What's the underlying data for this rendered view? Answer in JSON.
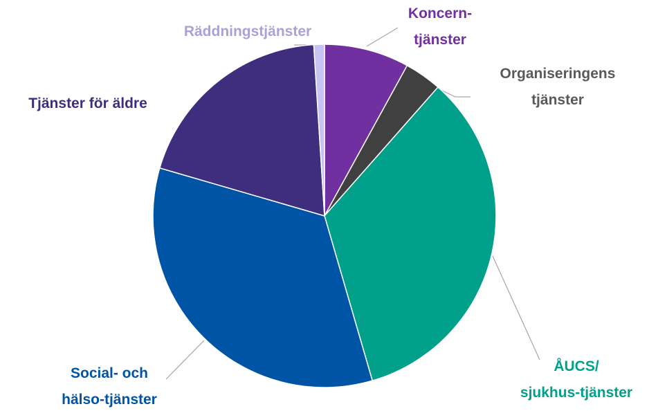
{
  "chart_data": {
    "type": "pie",
    "categories": [
      "Koncern-\ntjänster",
      "Organiseringens\ntjänster",
      "ÅUCS/\nsjukhus-tjänster",
      "Social- och\nhälso-tjänster",
      "Tjänster för äldre",
      "Räddningstjänster"
    ],
    "values": [
      8,
      3.5,
      34,
      34,
      19.5,
      1
    ],
    "colors": [
      "#7030a0",
      "#404040",
      "#00a08a",
      "#0054a6",
      "#3f2d7e",
      "#c9c3f3"
    ],
    "label_colors": [
      "#7030a0",
      "#595959",
      "#00a08a",
      "#0054a6",
      "#3f2d7e",
      "#a9a1d8"
    ],
    "start_angle": 0,
    "direction": "clockwise"
  }
}
